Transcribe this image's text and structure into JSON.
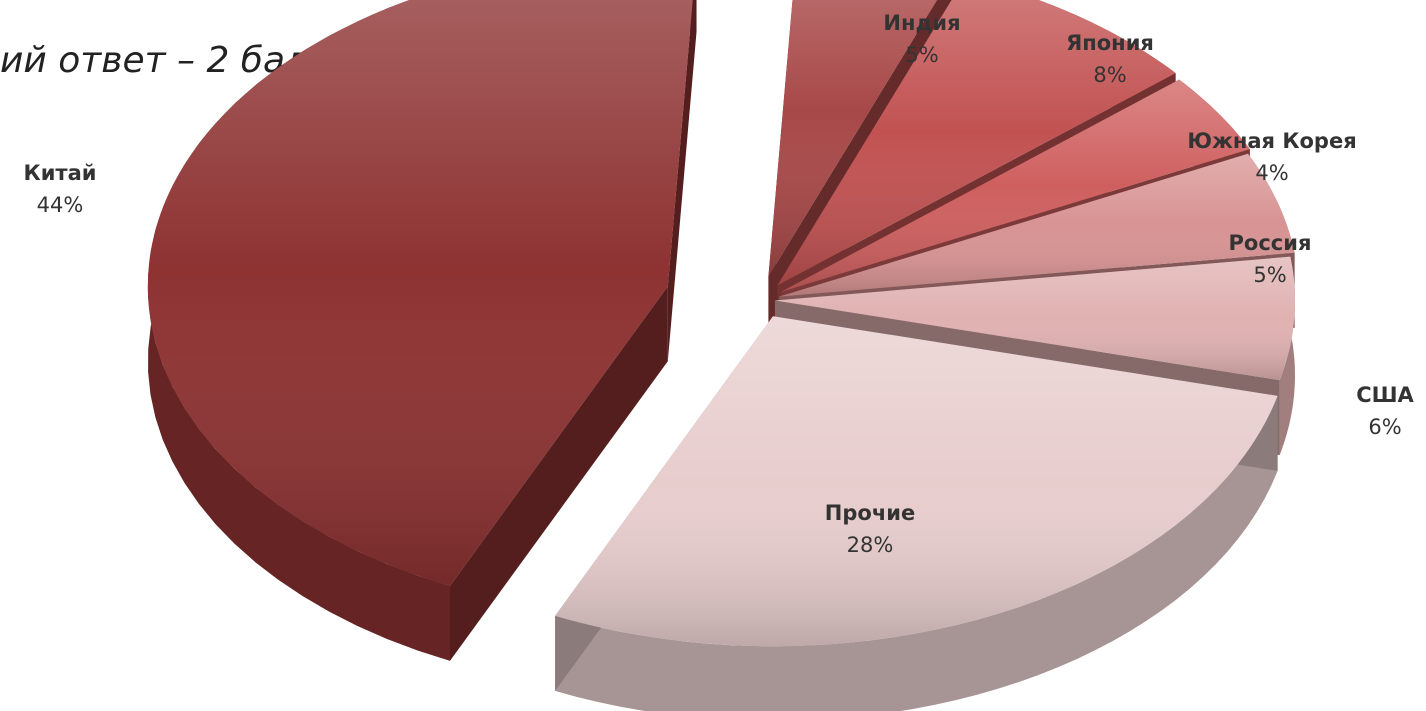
{
  "header": {
    "fragment": "ий ответ – 2 балла)"
  },
  "chart_data": {
    "type": "pie",
    "title": "",
    "slices": [
      {
        "label": "Китай",
        "value": 44,
        "value_text": "44%",
        "color": "#8e3232"
      },
      {
        "label": "Индия",
        "value": 5,
        "value_text": "5%",
        "color": "#a84848"
      },
      {
        "label": "Япония",
        "value": 8,
        "value_text": "8%",
        "color": "#c25252"
      },
      {
        "label": "Южная Корея",
        "value": 4,
        "value_text": "4%",
        "color": "#cf5f5f"
      },
      {
        "label": "Россия",
        "value": 5,
        "value_text": "5%",
        "color": "#d89393"
      },
      {
        "label": "США",
        "value": 6,
        "value_text": "6%",
        "color": "#e0b1b1"
      },
      {
        "label": "Прочие",
        "value": 28,
        "value_text": "28%",
        "color": "#e8cdcd"
      }
    ],
    "legend": "none"
  }
}
